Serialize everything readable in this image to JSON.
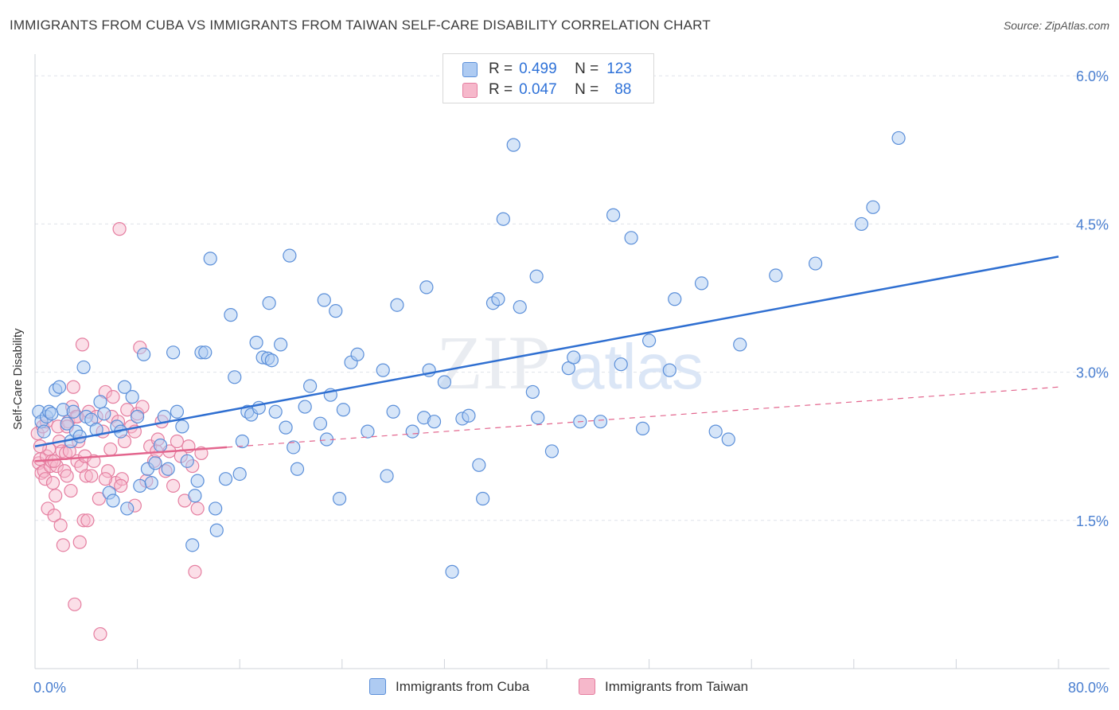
{
  "title": "IMMIGRANTS FROM CUBA VS IMMIGRANTS FROM TAIWAN SELF-CARE DISABILITY CORRELATION CHART",
  "source": "Source: ZipAtlas.com",
  "watermark": {
    "zip": "ZIP",
    "atlas": "atlas"
  },
  "legend_box": {
    "rows": [
      {
        "r_label": "R =",
        "r_value": "0.499",
        "n_label": "N =",
        "n_value": "123"
      },
      {
        "r_label": "R =",
        "r_value": "0.047",
        "n_label": "N =",
        "n_value": "88"
      }
    ]
  },
  "bottom_legend": {
    "cuba": "Immigrants from Cuba",
    "taiwan": "Immigrants from Taiwan"
  },
  "colors": {
    "cuba_fill": "#aecbf2",
    "cuba_stroke": "#5b8fd9",
    "cuba_line": "#2f6fd1",
    "taiwan_fill": "#f6b8cb",
    "taiwan_stroke": "#e57ea0",
    "taiwan_line": "#e3668e",
    "grid": "#dfe3ea",
    "tick_text": "#4a7fd0"
  },
  "chart_data": {
    "type": "scatter",
    "title": "IMMIGRANTS FROM CUBA VS IMMIGRANTS FROM TAIWAN SELF-CARE DISABILITY CORRELATION CHART",
    "xlabel": "",
    "ylabel": "Self-Care Disability",
    "xlim": [
      0,
      80
    ],
    "ylim": [
      0,
      6.3
    ],
    "x_tick_labels": [
      "0.0%",
      "80.0%"
    ],
    "y_ticks": [
      1.5,
      3.0,
      4.5,
      6.0
    ],
    "y_tick_labels": [
      "1.5%",
      "3.0%",
      "4.5%",
      "6.0%"
    ],
    "grid": true,
    "legend_position": "top-center",
    "series": [
      {
        "name": "Immigrants from Cuba",
        "r": 0.499,
        "n": 123,
        "trend": {
          "x": [
            0,
            80
          ],
          "y": [
            2.25,
            4.17
          ],
          "dashed_after": null
        },
        "points": [
          [
            0.3,
            2.6
          ],
          [
            0.5,
            2.5
          ],
          [
            0.7,
            2.4
          ],
          [
            0.9,
            2.55
          ],
          [
            1.1,
            2.6
          ],
          [
            1.3,
            2.58
          ],
          [
            1.6,
            2.82
          ],
          [
            1.9,
            2.85
          ],
          [
            2.2,
            2.62
          ],
          [
            2.5,
            2.48
          ],
          [
            2.8,
            2.3
          ],
          [
            3.0,
            2.6
          ],
          [
            3.2,
            2.4
          ],
          [
            3.5,
            2.35
          ],
          [
            3.8,
            3.05
          ],
          [
            4.0,
            2.55
          ],
          [
            4.4,
            2.52
          ],
          [
            4.8,
            2.42
          ],
          [
            5.1,
            2.7
          ],
          [
            5.4,
            2.58
          ],
          [
            5.8,
            1.78
          ],
          [
            6.1,
            1.7
          ],
          [
            6.4,
            2.45
          ],
          [
            6.7,
            2.4
          ],
          [
            7.0,
            2.85
          ],
          [
            7.2,
            1.62
          ],
          [
            7.6,
            2.75
          ],
          [
            8.0,
            2.55
          ],
          [
            8.2,
            1.85
          ],
          [
            8.5,
            3.18
          ],
          [
            8.8,
            2.02
          ],
          [
            9.1,
            1.88
          ],
          [
            9.4,
            2.08
          ],
          [
            9.8,
            2.26
          ],
          [
            10.1,
            2.55
          ],
          [
            10.4,
            2.02
          ],
          [
            10.8,
            3.2
          ],
          [
            11.1,
            2.6
          ],
          [
            11.5,
            2.45
          ],
          [
            11.9,
            2.1
          ],
          [
            12.3,
            1.25
          ],
          [
            12.5,
            1.75
          ],
          [
            12.7,
            1.9
          ],
          [
            13.0,
            3.2
          ],
          [
            13.3,
            3.2
          ],
          [
            13.7,
            4.15
          ],
          [
            14.1,
            1.62
          ],
          [
            14.2,
            1.4
          ],
          [
            14.9,
            1.92
          ],
          [
            15.3,
            3.58
          ],
          [
            15.6,
            2.95
          ],
          [
            16.0,
            1.97
          ],
          [
            16.2,
            2.3
          ],
          [
            16.6,
            2.6
          ],
          [
            16.9,
            2.57
          ],
          [
            17.3,
            3.3
          ],
          [
            17.5,
            2.64
          ],
          [
            17.8,
            3.15
          ],
          [
            18.2,
            3.14
          ],
          [
            18.3,
            3.7
          ],
          [
            18.5,
            3.12
          ],
          [
            18.8,
            2.6
          ],
          [
            19.2,
            3.28
          ],
          [
            19.6,
            2.44
          ],
          [
            19.9,
            4.18
          ],
          [
            20.2,
            2.24
          ],
          [
            20.5,
            2.02
          ],
          [
            21.1,
            2.65
          ],
          [
            21.5,
            2.86
          ],
          [
            22.3,
            2.48
          ],
          [
            22.6,
            3.73
          ],
          [
            22.8,
            2.32
          ],
          [
            23.1,
            2.77
          ],
          [
            23.5,
            3.62
          ],
          [
            23.8,
            1.72
          ],
          [
            24.1,
            2.62
          ],
          [
            24.7,
            3.1
          ],
          [
            25.2,
            3.18
          ],
          [
            26.0,
            2.4
          ],
          [
            27.2,
            3.02
          ],
          [
            27.5,
            1.95
          ],
          [
            28.0,
            2.6
          ],
          [
            28.3,
            3.68
          ],
          [
            29.5,
            2.4
          ],
          [
            30.4,
            2.54
          ],
          [
            30.6,
            3.86
          ],
          [
            30.8,
            3.02
          ],
          [
            31.2,
            2.5
          ],
          [
            32.0,
            2.9
          ],
          [
            32.6,
            0.98
          ],
          [
            33.4,
            2.53
          ],
          [
            33.9,
            2.56
          ],
          [
            34.7,
            2.06
          ],
          [
            35.0,
            1.72
          ],
          [
            35.8,
            3.7
          ],
          [
            36.2,
            3.74
          ],
          [
            36.6,
            4.55
          ],
          [
            37.4,
            5.3
          ],
          [
            37.9,
            3.66
          ],
          [
            38.9,
            2.8
          ],
          [
            39.2,
            3.97
          ],
          [
            39.3,
            2.54
          ],
          [
            40.4,
            2.2
          ],
          [
            41.7,
            3.04
          ],
          [
            42.1,
            3.15
          ],
          [
            42.6,
            2.5
          ],
          [
            44.2,
            2.5
          ],
          [
            45.2,
            4.59
          ],
          [
            45.8,
            3.08
          ],
          [
            46.6,
            4.36
          ],
          [
            47.5,
            2.43
          ],
          [
            48.0,
            3.32
          ],
          [
            49.6,
            3.02
          ],
          [
            50.0,
            3.74
          ],
          [
            52.1,
            3.9
          ],
          [
            53.2,
            2.4
          ],
          [
            54.2,
            2.32
          ],
          [
            55.1,
            3.28
          ],
          [
            57.9,
            3.98
          ],
          [
            61.0,
            4.1
          ],
          [
            64.6,
            4.5
          ],
          [
            65.5,
            4.67
          ],
          [
            67.5,
            5.37
          ]
        ]
      },
      {
        "name": "Immigrants from Taiwan",
        "r": 0.047,
        "n": 88,
        "trend": {
          "x": [
            0,
            80
          ],
          "y": [
            2.1,
            2.85
          ],
          "solid_until_x": 15
        },
        "points": [
          [
            0.2,
            2.38
          ],
          [
            0.3,
            2.08
          ],
          [
            0.4,
            2.12
          ],
          [
            0.5,
            1.98
          ],
          [
            0.6,
            2.45
          ],
          [
            0.7,
            2.0
          ],
          [
            0.8,
            1.92
          ],
          [
            0.9,
            2.15
          ],
          [
            1.0,
            1.62
          ],
          [
            1.1,
            2.22
          ],
          [
            1.2,
            2.05
          ],
          [
            1.3,
            2.1
          ],
          [
            1.4,
            1.88
          ],
          [
            1.5,
            1.55
          ],
          [
            1.6,
            1.75
          ],
          [
            1.7,
            2.05
          ],
          [
            1.8,
            2.45
          ],
          [
            1.9,
            2.3
          ],
          [
            2.0,
            1.45
          ],
          [
            2.1,
            2.2
          ],
          [
            2.2,
            1.25
          ],
          [
            2.3,
            2.0
          ],
          [
            2.4,
            2.18
          ],
          [
            2.5,
            1.95
          ],
          [
            2.6,
            2.5
          ],
          [
            2.7,
            2.2
          ],
          [
            2.8,
            1.8
          ],
          [
            2.9,
            2.65
          ],
          [
            3.0,
            2.85
          ],
          [
            3.1,
            0.65
          ],
          [
            3.2,
            2.55
          ],
          [
            3.3,
            2.1
          ],
          [
            3.4,
            2.3
          ],
          [
            3.5,
            1.28
          ],
          [
            3.6,
            2.05
          ],
          [
            3.7,
            3.28
          ],
          [
            3.8,
            1.5
          ],
          [
            3.9,
            2.15
          ],
          [
            4.0,
            1.95
          ],
          [
            4.2,
            2.6
          ],
          [
            4.4,
            1.95
          ],
          [
            4.6,
            2.1
          ],
          [
            4.8,
            2.55
          ],
          [
            5.0,
            1.72
          ],
          [
            5.1,
            0.35
          ],
          [
            5.3,
            2.4
          ],
          [
            5.5,
            2.8
          ],
          [
            5.7,
            2.0
          ],
          [
            5.9,
            2.22
          ],
          [
            6.0,
            2.55
          ],
          [
            6.1,
            2.75
          ],
          [
            6.3,
            1.88
          ],
          [
            6.5,
            2.5
          ],
          [
            6.6,
            4.45
          ],
          [
            6.8,
            1.92
          ],
          [
            7.0,
            2.3
          ],
          [
            7.2,
            2.62
          ],
          [
            7.5,
            2.45
          ],
          [
            7.8,
            2.4
          ],
          [
            8.0,
            2.58
          ],
          [
            8.2,
            3.25
          ],
          [
            8.4,
            2.65
          ],
          [
            8.7,
            1.9
          ],
          [
            9.0,
            2.25
          ],
          [
            9.3,
            2.1
          ],
          [
            9.6,
            2.32
          ],
          [
            9.9,
            2.5
          ],
          [
            10.2,
            2.0
          ],
          [
            10.5,
            2.2
          ],
          [
            10.8,
            1.85
          ],
          [
            11.1,
            2.3
          ],
          [
            11.4,
            2.15
          ],
          [
            11.7,
            1.7
          ],
          [
            12.0,
            2.25
          ],
          [
            12.3,
            2.05
          ],
          [
            12.5,
            0.98
          ],
          [
            12.7,
            1.62
          ],
          [
            13.0,
            2.18
          ],
          [
            0.4,
            2.25
          ],
          [
            0.9,
            2.5
          ],
          [
            1.5,
            2.1
          ],
          [
            2.5,
            2.45
          ],
          [
            3.3,
            2.55
          ],
          [
            4.1,
            1.5
          ],
          [
            5.5,
            1.92
          ],
          [
            6.7,
            1.85
          ],
          [
            7.8,
            1.65
          ],
          [
            9.5,
            2.2
          ]
        ]
      }
    ]
  }
}
